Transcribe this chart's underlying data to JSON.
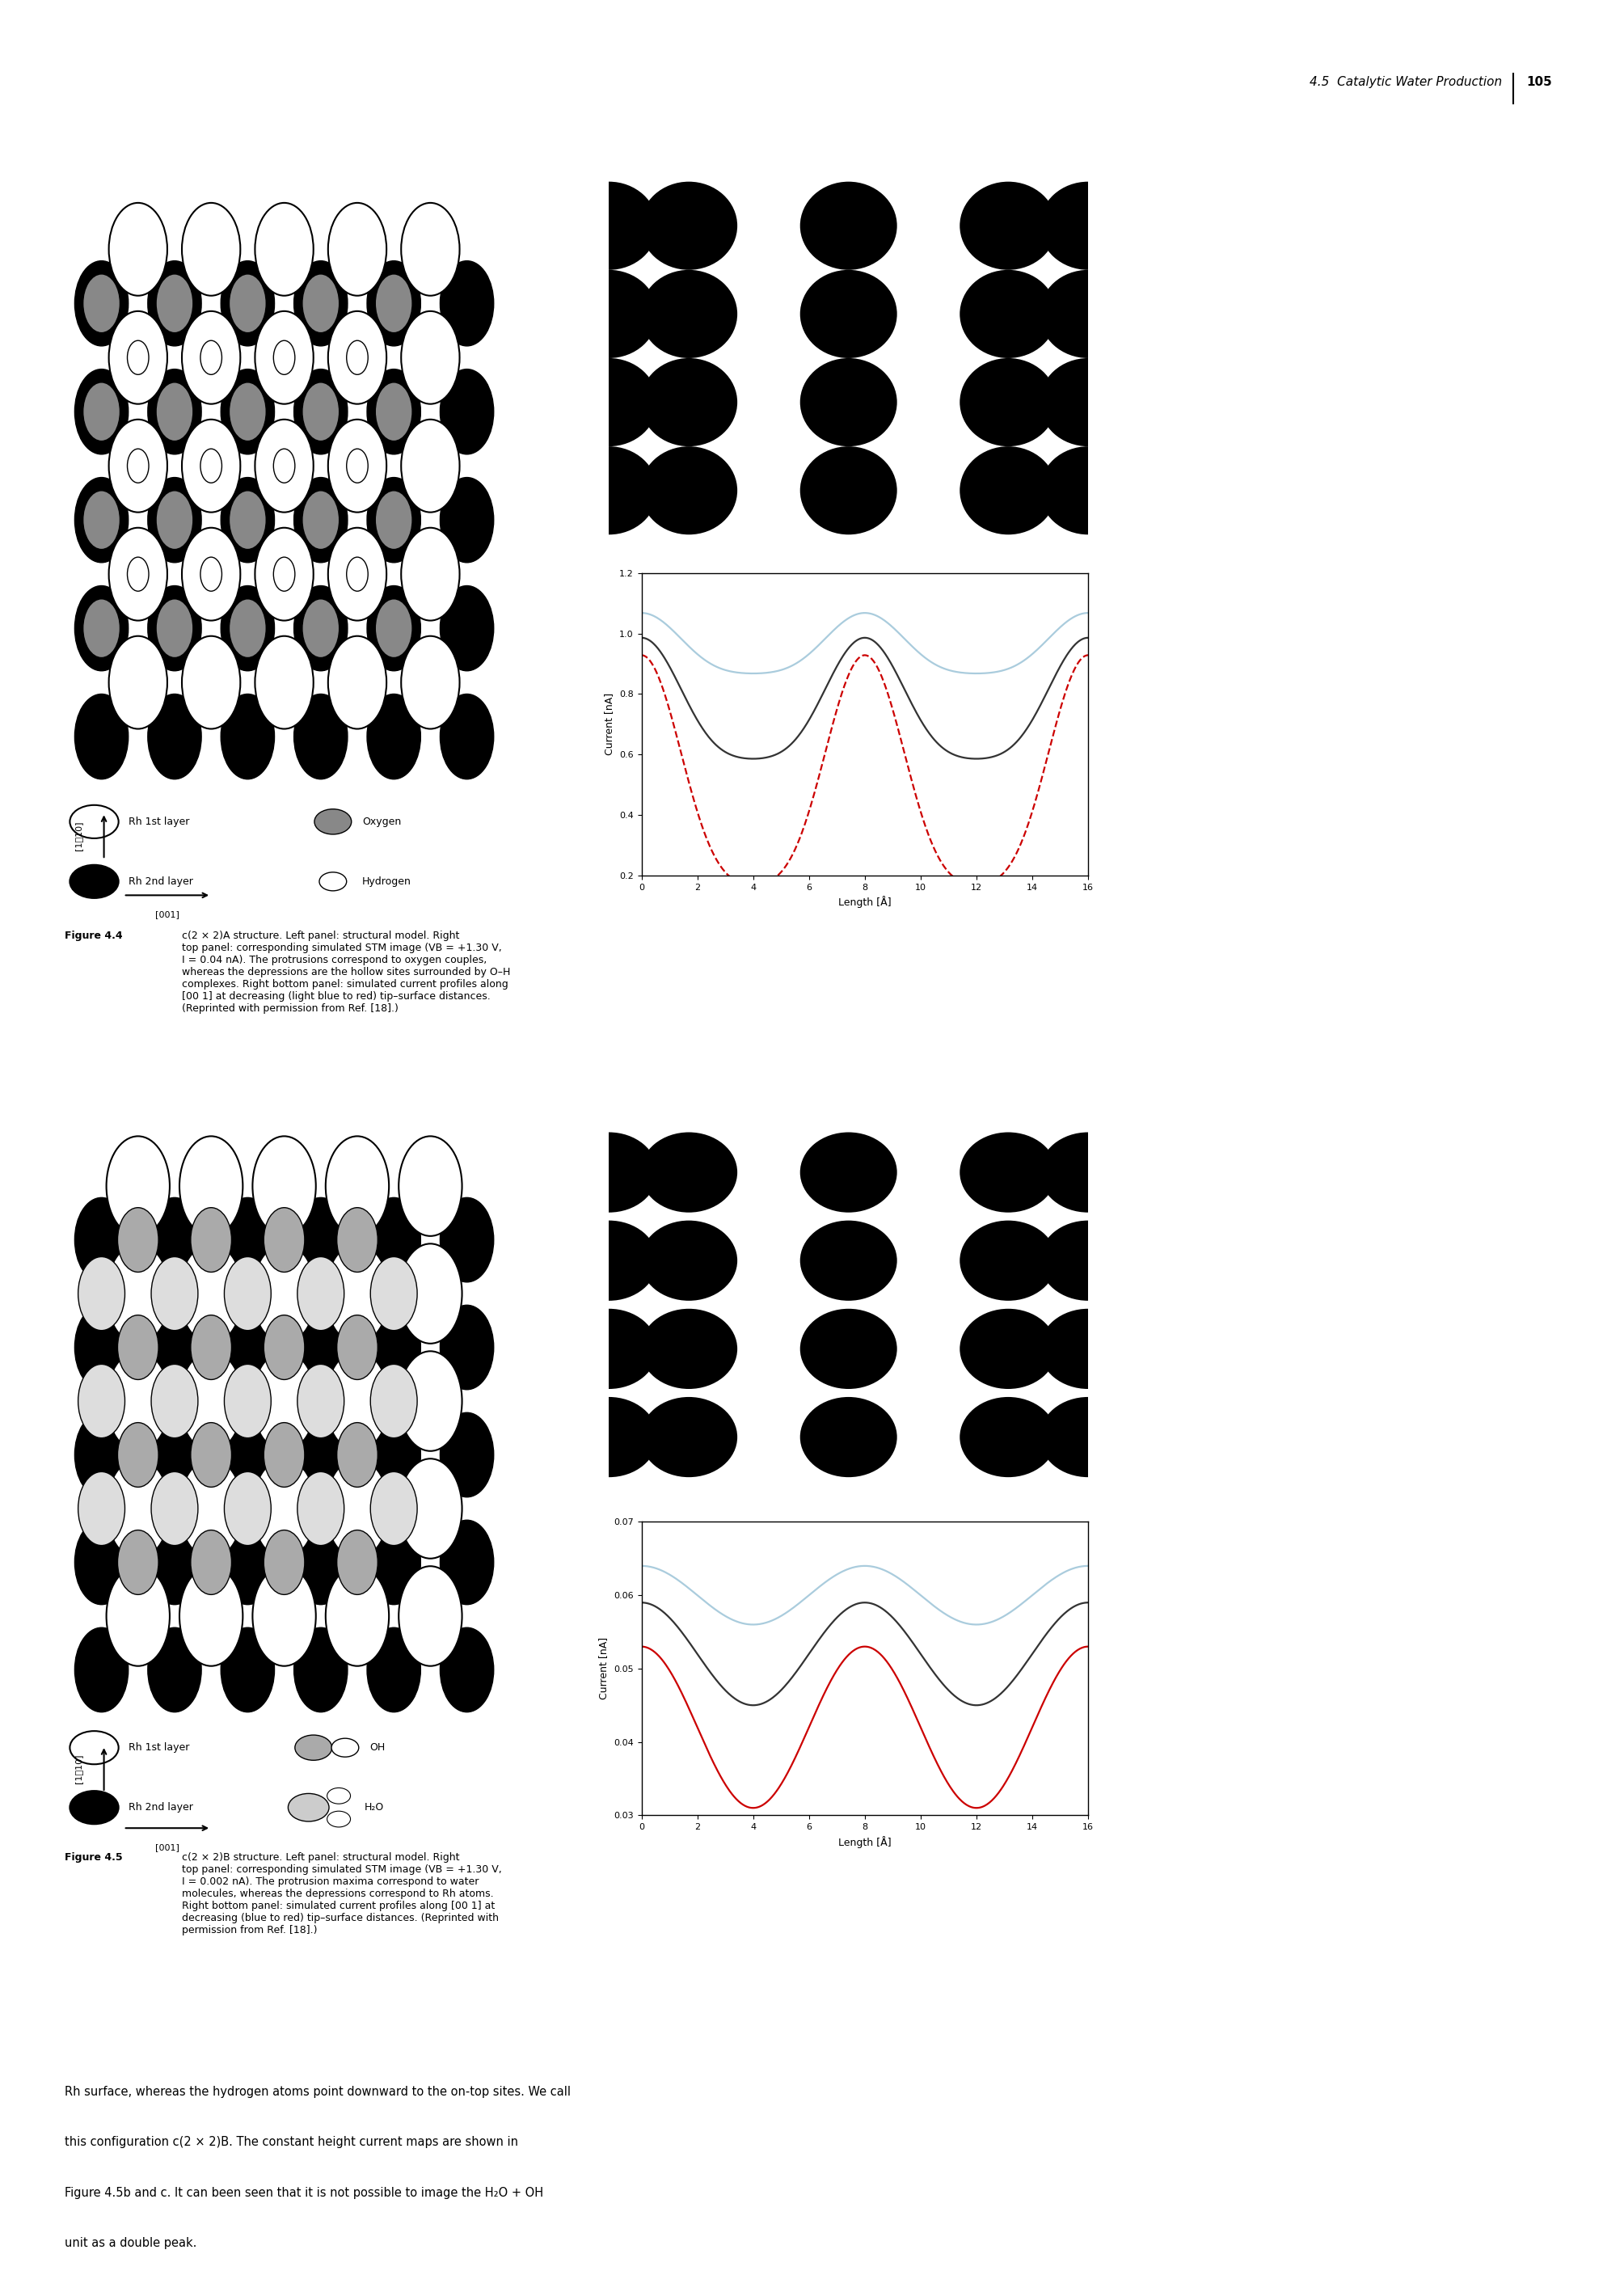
{
  "page_header": "4.5  Catalytic Water Production",
  "page_number": "105",
  "fig4_caption_bold": "Figure 4.4  ",
  "fig4_caption_rest": "c(2 × 2)A structure. Left panel: structural model. Right\ntop panel: corresponding simulated STM image (VB = +1.30 V,\nI = 0.04 nA). The protrusions correspond to oxygen couples,\nwhereas the depressions are the hollow sites surrounded by O–H\ncomplexes. Right bottom panel: simulated current profiles along\n[00 1] at decreasing (light blue to red) tip–surface distances.\n(Reprinted with permission from Ref. [18].)",
  "fig5_caption_bold": "Figure 4.5  ",
  "fig5_caption_rest": "c(2 × 2)B structure. Left panel: structural model. Right\ntop panel: corresponding simulated STM image (VB = +1.30 V,\nI = 0.002 nA). The protrusion maxima correspond to water\nmolecules, whereas the depressions correspond to Rh atoms.\nRight bottom panel: simulated current profiles along [00 1] at\ndecreasing (blue to red) tip–surface distances. (Reprinted with\npermission from Ref. [18].)",
  "body_text_line1": "Rh surface, whereas the hydrogen atoms point downward to the on-top sites. We call",
  "body_text_line2": "this configuration c(2 × 2)B. The constant height current maps are shown in",
  "body_text_line3": "Figure 4.5b and c. It can been seen that it is not possible to image the H₂O + OH",
  "body_text_line4": "unit as a double peak.",
  "fig4_graph": {
    "xlabel": "Length [Å]",
    "ylabel": "Current [nA]",
    "xlim": [
      0,
      16
    ],
    "ylim": [
      0.2,
      1.2
    ],
    "xticks": [
      0,
      2,
      4,
      6,
      8,
      10,
      12,
      14,
      16
    ],
    "yticks": [
      0.2,
      0.4,
      0.6,
      0.8,
      1.0,
      1.2
    ]
  },
  "fig5_graph": {
    "xlabel": "Length [Å]",
    "ylabel": "Current [nA]",
    "xlim": [
      0,
      16
    ],
    "ylim": [
      0.03,
      0.07
    ],
    "xticks": [
      0,
      2,
      4,
      6,
      8,
      10,
      12,
      14,
      16
    ],
    "yticks": [
      0.03,
      0.04,
      0.05,
      0.06,
      0.07
    ]
  }
}
